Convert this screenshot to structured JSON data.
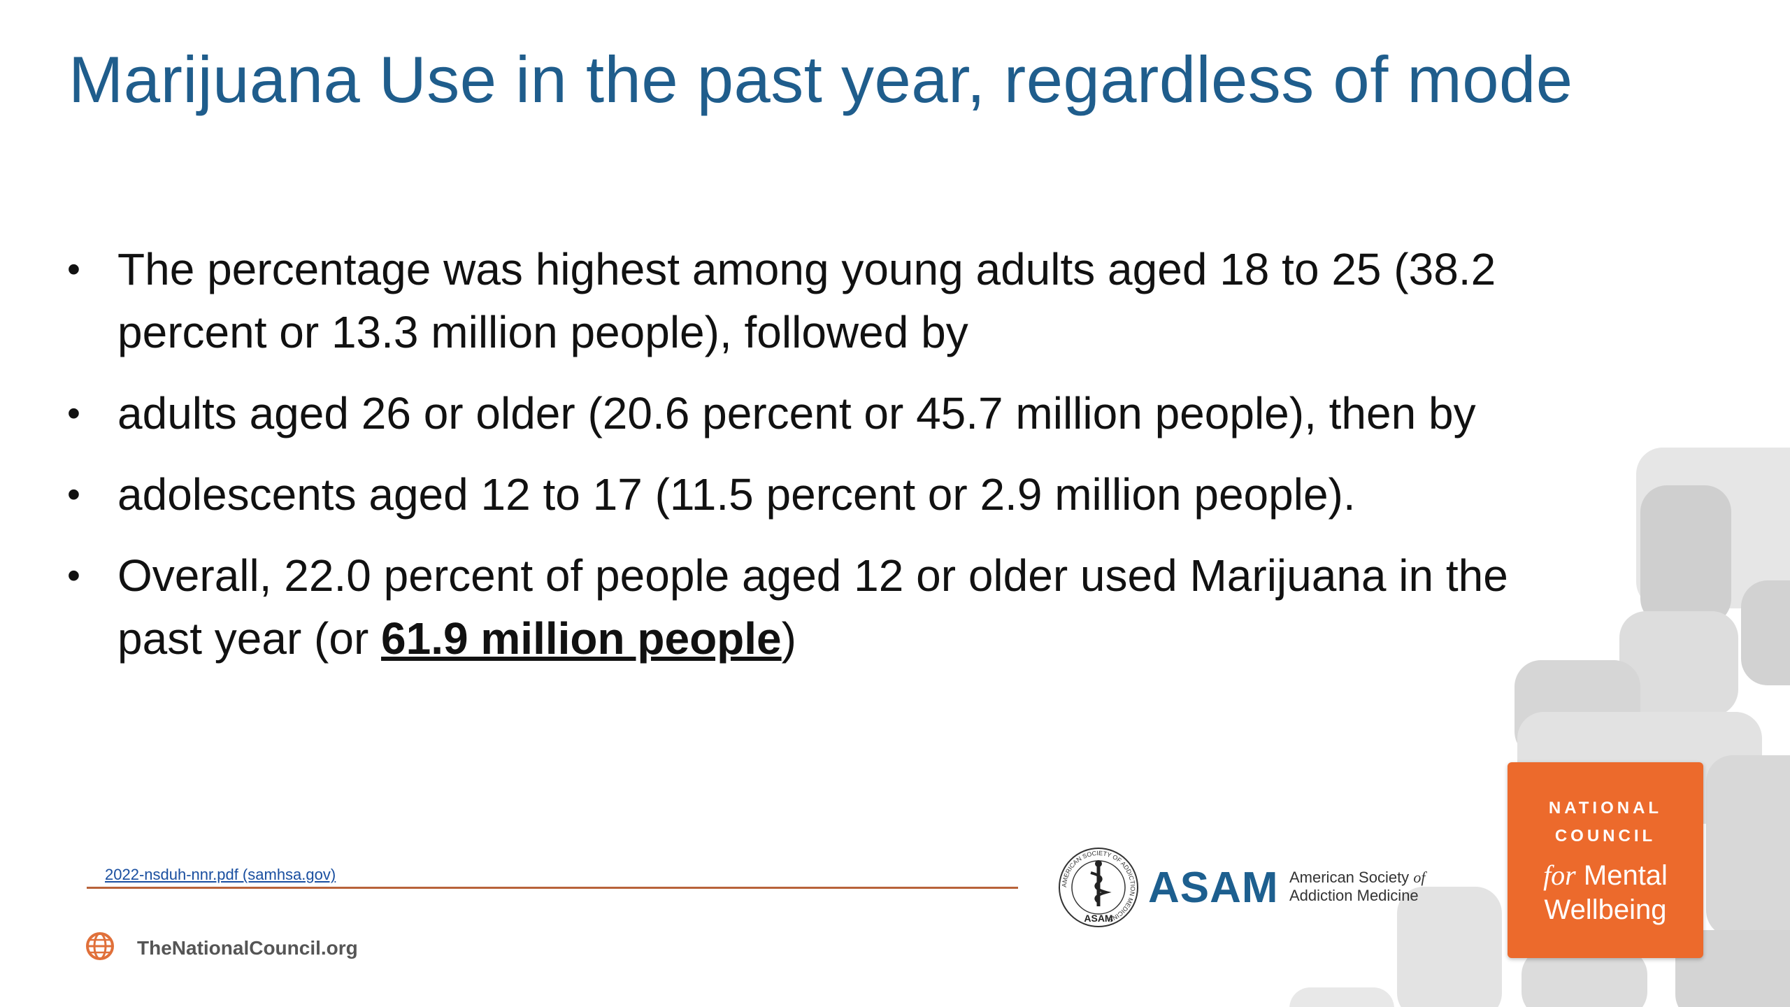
{
  "slide": {
    "title": "Marijuana Use in the past year, regardless of mode",
    "bullet_symbol": "•",
    "bullets": [
      {
        "line1": "The percentage was highest among young adults aged 18 to 25 (38.2",
        "line2": "percent or 13.3 million people), followed by"
      },
      {
        "line1": "adults aged 26 or older (20.6 percent or 45.7 million people), then by"
      },
      {
        "line1": "adolescents aged 12 to 17 (11.5 percent or 2.9 million people)."
      },
      {
        "line1": "Overall, 22.0 percent of people aged 12 or older used Marijuana in the",
        "line2_prefix": "past year (or ",
        "line2_emphasis": "61.9 million people",
        "line2_suffix": ")"
      }
    ]
  },
  "footer": {
    "source_link": "2022-nsduh-nnr.pdf (samhsa.gov)",
    "org_site": "TheNationalCouncil.org",
    "org_icon": "globe-icon",
    "accent_rule_color": "#b8633a"
  },
  "asam_logo": {
    "acronym": "ASAM",
    "name_line1": "American Society",
    "name_of": "of",
    "name_line2": "Addiction Medicine",
    "seal_text": "ASAM",
    "seal_ring_text": "AMERICAN SOCIETY OF ADDICTION MEDICINE",
    "seal_icon": "caduceus-icon"
  },
  "nc_logo": {
    "line1": "NATIONAL",
    "line2": "COUNCIL",
    "for": "for",
    "mental": "Mental",
    "wellbeing": "Wellbeing",
    "color": "#ec6a2c"
  },
  "colors": {
    "title": "#1f5d8c",
    "body_text": "#111111",
    "link": "#1a4fa0",
    "asam_blue": "#1d5f8f"
  }
}
